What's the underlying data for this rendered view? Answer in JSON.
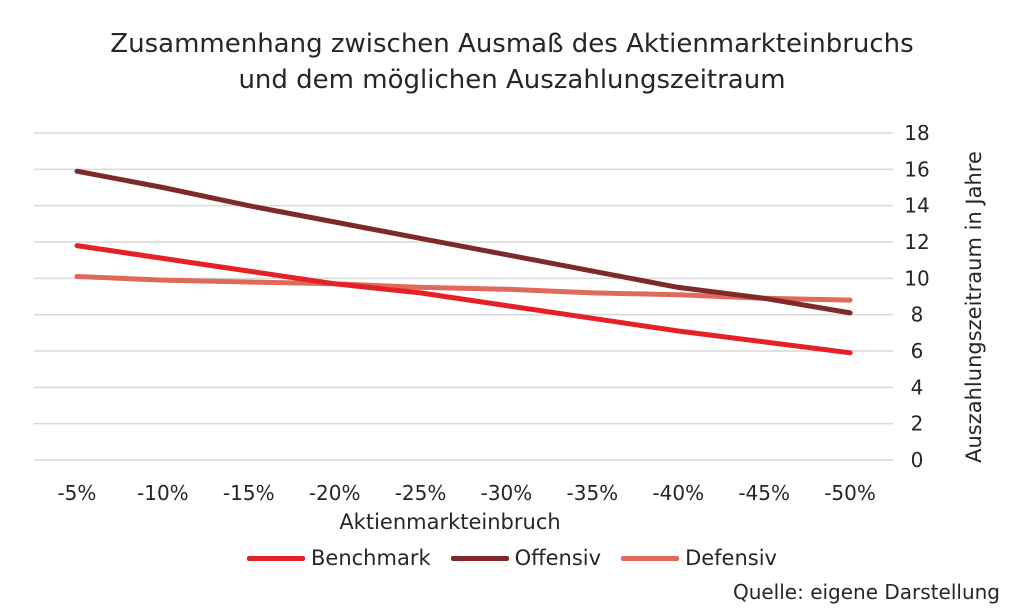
{
  "chart_data": {
    "type": "line",
    "title": "Zusammenhang zwischen Ausmaß des Aktienmarkteinbruchs",
    "subtitle": "und dem möglichen Auszahlungszeitraum",
    "xlabel": "Aktienmarkteinbruch",
    "ylabel": "Auszahlungszeitraum in Jahre",
    "categories": [
      "-5%",
      "-10%",
      "-15%",
      "-20%",
      "-25%",
      "-30%",
      "-35%",
      "-40%",
      "-45%",
      "-50%"
    ],
    "y_ticks": [
      "0",
      "2",
      "4",
      "6",
      "8",
      "10",
      "12",
      "14",
      "16",
      "18"
    ],
    "ylim": [
      0,
      18
    ],
    "y_axis_position": "right",
    "grid": true,
    "legend_position": "bottom",
    "series": [
      {
        "name": "Benchmark",
        "color": "#e52027",
        "values": [
          11.8,
          11.1,
          10.4,
          9.7,
          9.2,
          8.5,
          7.8,
          7.1,
          6.5,
          5.9
        ]
      },
      {
        "name": "Offensiv",
        "color": "#7f2a2a",
        "values": [
          15.9,
          15.0,
          14.0,
          13.1,
          12.2,
          11.3,
          10.4,
          9.5,
          8.9,
          8.1
        ]
      },
      {
        "name": "Defensiv",
        "color": "#e06a5a",
        "values": [
          10.1,
          9.9,
          9.8,
          9.7,
          9.5,
          9.4,
          9.2,
          9.1,
          8.9,
          8.8
        ]
      }
    ],
    "source": "Quelle: eigene Darstellung"
  }
}
